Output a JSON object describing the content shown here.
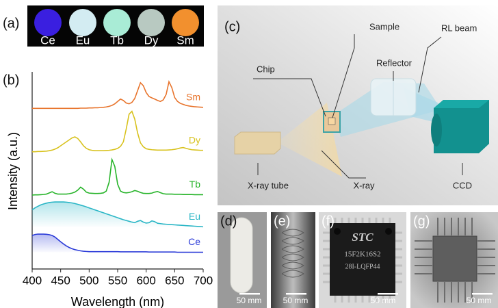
{
  "chart_data": {
    "type": "line",
    "xlabel": "Wavelength (nm)",
    "ylabel": "Intensity (a.u.)",
    "xlim": [
      400,
      700
    ],
    "xticks": [
      400,
      450,
      500,
      550,
      600,
      650,
      700
    ],
    "ylim": [
      0,
      10
    ],
    "x": [
      400,
      405,
      410,
      415,
      420,
      425,
      430,
      435,
      440,
      445,
      450,
      455,
      460,
      465,
      470,
      475,
      480,
      485,
      490,
      495,
      500,
      505,
      510,
      515,
      520,
      525,
      530,
      535,
      540,
      545,
      550,
      555,
      560,
      565,
      570,
      575,
      580,
      585,
      590,
      595,
      600,
      605,
      610,
      615,
      620,
      625,
      630,
      635,
      640,
      645,
      650,
      655,
      660,
      665,
      670,
      675,
      680,
      685,
      690,
      695,
      700
    ],
    "series": [
      {
        "name": "Ce",
        "color": "#2b3bd8",
        "values": [
          1.7,
          1.75,
          1.77,
          1.77,
          1.77,
          1.76,
          1.74,
          1.7,
          1.62,
          1.5,
          1.38,
          1.27,
          1.17,
          1.09,
          1.03,
          0.98,
          0.95,
          0.92,
          0.9,
          0.89,
          0.88,
          0.88,
          0.88,
          0.88,
          0.88,
          0.88,
          0.88,
          0.88,
          0.88,
          0.88,
          0.88,
          0.87,
          0.87,
          0.87,
          0.87,
          0.87,
          0.87,
          0.87,
          0.87,
          0.87,
          0.87,
          0.86,
          0.86,
          0.86,
          0.86,
          0.86,
          0.86,
          0.86,
          0.86,
          0.86,
          0.86,
          0.85,
          0.85,
          0.85,
          0.85,
          0.85,
          0.85,
          0.85,
          0.85,
          0.85,
          0.85
        ]
      },
      {
        "name": "Eu",
        "color": "#2ab6c6",
        "values": [
          3.0,
          3.1,
          3.18,
          3.25,
          3.3,
          3.34,
          3.37,
          3.39,
          3.4,
          3.4,
          3.4,
          3.4,
          3.39,
          3.37,
          3.35,
          3.32,
          3.28,
          3.24,
          3.2,
          3.15,
          3.1,
          3.05,
          3.0,
          2.95,
          2.9,
          2.85,
          2.8,
          2.75,
          2.7,
          2.65,
          2.6,
          2.55,
          2.5,
          2.46,
          2.42,
          2.38,
          2.35,
          2.42,
          2.46,
          2.38,
          2.33,
          2.35,
          2.44,
          2.4,
          2.32,
          2.3,
          2.28,
          2.27,
          2.26,
          2.25,
          2.24,
          2.23,
          2.22,
          2.21,
          2.2,
          2.19,
          2.18,
          2.17,
          2.16,
          2.15,
          2.14
        ]
      },
      {
        "name": "Tb",
        "color": "#27b42a",
        "values": [
          3.75,
          3.76,
          3.76,
          3.77,
          3.78,
          3.8,
          3.86,
          3.92,
          3.84,
          3.8,
          3.8,
          3.8,
          3.8,
          3.82,
          3.85,
          3.9,
          4.0,
          4.15,
          4.05,
          3.9,
          3.85,
          3.84,
          3.83,
          3.83,
          3.84,
          3.86,
          3.95,
          4.4,
          5.55,
          5.2,
          4.3,
          3.95,
          3.88,
          3.86,
          3.88,
          3.92,
          3.98,
          3.94,
          3.88,
          3.84,
          3.83,
          3.83,
          3.85,
          3.9,
          3.93,
          3.87,
          3.82,
          3.8,
          3.8,
          3.8,
          3.79,
          3.79,
          3.79,
          3.78,
          3.78,
          3.78,
          3.78,
          3.77,
          3.77,
          3.77,
          3.77
        ]
      },
      {
        "name": "Dy",
        "color": "#d8c21e",
        "values": [
          5.95,
          5.95,
          5.96,
          5.96,
          5.97,
          5.98,
          6.0,
          6.03,
          6.08,
          6.15,
          6.25,
          6.35,
          6.45,
          6.55,
          6.65,
          6.7,
          6.62,
          6.45,
          6.25,
          6.12,
          6.05,
          6.02,
          6.0,
          6.0,
          6.0,
          6.0,
          6.01,
          6.02,
          6.04,
          6.07,
          6.12,
          6.22,
          6.45,
          7.1,
          7.85,
          8.0,
          7.6,
          6.9,
          6.4,
          6.2,
          6.1,
          6.07,
          6.05,
          6.04,
          6.03,
          6.03,
          6.03,
          6.03,
          6.04,
          6.05,
          6.07,
          6.1,
          6.14,
          6.16,
          6.12,
          6.08,
          6.05,
          6.04,
          6.03,
          6.02,
          6.02
        ]
      },
      {
        "name": "Sm",
        "color": "#e8742c",
        "values": [
          8.15,
          8.15,
          8.15,
          8.15,
          8.15,
          8.15,
          8.15,
          8.15,
          8.15,
          8.15,
          8.15,
          8.15,
          8.15,
          8.15,
          8.15,
          8.15,
          8.15,
          8.16,
          8.16,
          8.16,
          8.17,
          8.17,
          8.18,
          8.18,
          8.19,
          8.2,
          8.22,
          8.25,
          8.3,
          8.38,
          8.5,
          8.62,
          8.55,
          8.42,
          8.38,
          8.45,
          8.65,
          9.05,
          9.45,
          9.3,
          8.95,
          8.75,
          8.68,
          8.62,
          8.55,
          8.5,
          8.58,
          8.85,
          9.5,
          9.2,
          8.7,
          8.5,
          8.4,
          8.35,
          8.3,
          8.27,
          8.25,
          8.23,
          8.22,
          8.21,
          8.2
        ]
      }
    ]
  },
  "panel_labels": [
    "(a)",
    "(b)",
    "(c)",
    "(d)",
    "(e)",
    "(f)",
    "(g)"
  ],
  "photo_labels": [
    "Ce",
    "Eu",
    "Tb",
    "Dy",
    "Sm"
  ],
  "diagram_labels": {
    "sample": "Sample",
    "rl_beam": "RL beam",
    "chip": "Chip",
    "reflector": "Reflector",
    "xray_tube": "X-ray tube",
    "xray": "X-ray",
    "ccd": "CCD"
  },
  "chip_marking": [
    "STC",
    "15F2K16S2",
    "28I-LQFP44"
  ],
  "scale_bars": [
    "50 mm",
    "50 mm",
    "50 mm",
    "50 mm"
  ]
}
